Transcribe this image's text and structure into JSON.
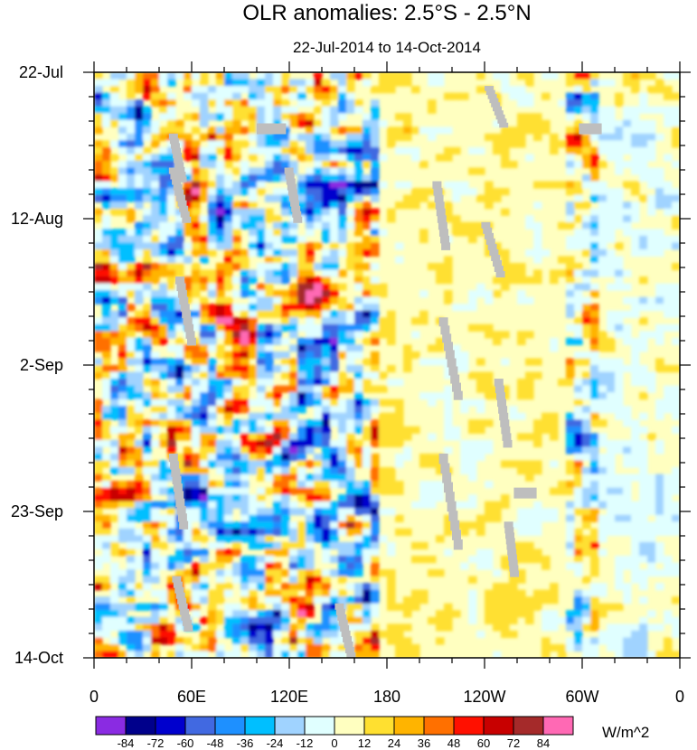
{
  "chart_data": {
    "type": "heatmap",
    "title": "OLR anomalies: 2.5°S - 2.5°N",
    "subtitle": "22-Jul-2014 to 14-Oct-2014",
    "x_ticks": [
      "0",
      "60E",
      "120E",
      "180",
      "120W",
      "60W",
      "0"
    ],
    "x_tick_values": [
      0,
      60,
      120,
      180,
      240,
      300,
      360
    ],
    "y_ticks": [
      "22-Jul",
      "12-Aug",
      "2-Sep",
      "23-Sep",
      "14-Oct"
    ],
    "y_tick_values": [
      "2014-07-22",
      "2014-08-12",
      "2014-09-02",
      "2014-09-23",
      "2014-10-14"
    ],
    "xlim": [
      0,
      360
    ],
    "ylim": [
      "2014-07-22",
      "2014-10-14"
    ],
    "y_reversed": true,
    "units": "W/m^2",
    "colorbar": {
      "levels": [
        "-84",
        "-72",
        "-60",
        "-48",
        "-36",
        "-24",
        "-12",
        "0",
        "12",
        "24",
        "36",
        "48",
        "60",
        "72",
        "84"
      ],
      "colors": [
        "#8a2be2",
        "#00008b",
        "#0000cd",
        "#4169e1",
        "#1e90ff",
        "#00bfff",
        "#a0d3ff",
        "#e0ffff",
        "#ffffc0",
        "#ffe030",
        "#ffb400",
        "#ff7000",
        "#ff1000",
        "#c80000",
        "#a52a2a",
        "#ff69b4"
      ]
    },
    "missing_color": "#bebebe",
    "features": [
      {
        "lon_range": [
          0,
          175
        ],
        "description_level": "strong anomalies -84 to 84"
      },
      {
        "lon_range": [
          175,
          290
        ],
        "description_level": "weak anomalies near 0 to 12"
      },
      {
        "lon_range": [
          290,
          310
        ],
        "description_level": "moderate anomalies -48 to 60"
      }
    ]
  }
}
